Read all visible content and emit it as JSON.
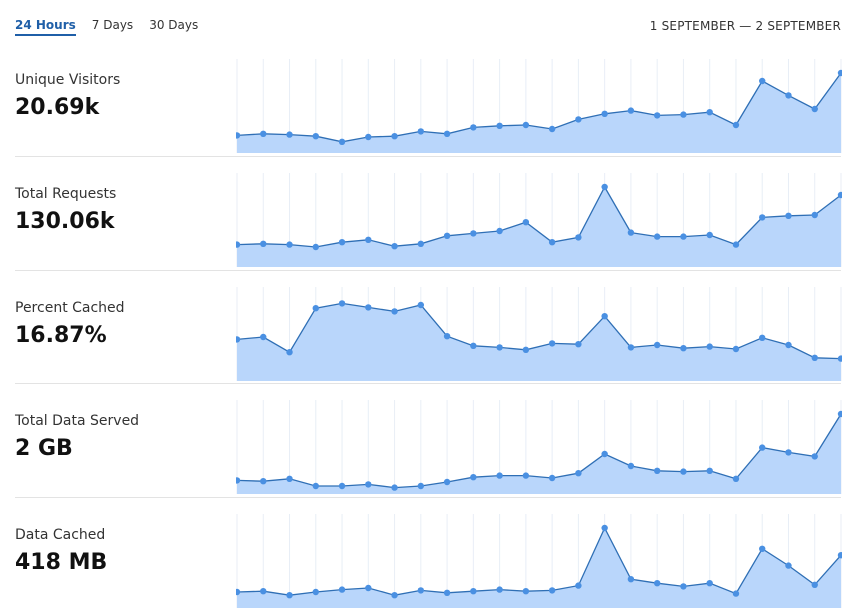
{
  "tabs": [
    {
      "label": "24 Hours",
      "active": true
    },
    {
      "label": "7 Days",
      "active": false
    },
    {
      "label": "30 Days",
      "active": false
    }
  ],
  "date_range": "1 SEPTEMBER — 2 SEPTEMBER",
  "colors": {
    "accent": "#1f5fa8",
    "line": "#2f6fb5",
    "fill": "#b9d6fb",
    "point": "#4a90e2"
  },
  "metrics": [
    {
      "label": "Unique Visitors",
      "value": "20.69k",
      "series": [
        0.22,
        0.24,
        0.23,
        0.21,
        0.14,
        0.2,
        0.21,
        0.27,
        0.24,
        0.32,
        0.34,
        0.35,
        0.3,
        0.42,
        0.49,
        0.53,
        0.47,
        0.48,
        0.51,
        0.35,
        0.9,
        0.72,
        0.55,
        1.0
      ]
    },
    {
      "label": "Total Requests",
      "value": "130.06k",
      "series": [
        0.28,
        0.29,
        0.28,
        0.25,
        0.31,
        0.34,
        0.26,
        0.29,
        0.39,
        0.42,
        0.45,
        0.56,
        0.31,
        0.37,
        1.0,
        0.43,
        0.38,
        0.38,
        0.4,
        0.28,
        0.62,
        0.64,
        0.65,
        0.9
      ]
    },
    {
      "label": "Percent Cached",
      "value": "16.87%",
      "series": [
        0.52,
        0.55,
        0.36,
        0.91,
        0.97,
        0.92,
        0.87,
        0.95,
        0.56,
        0.44,
        0.42,
        0.39,
        0.47,
        0.46,
        0.81,
        0.42,
        0.45,
        0.41,
        0.43,
        0.4,
        0.54,
        0.45,
        0.29,
        0.28
      ]
    },
    {
      "label": "Total Data Served",
      "value": "2 GB",
      "series": [
        0.17,
        0.16,
        0.19,
        0.1,
        0.1,
        0.12,
        0.08,
        0.1,
        0.15,
        0.21,
        0.23,
        0.23,
        0.2,
        0.26,
        0.5,
        0.35,
        0.29,
        0.28,
        0.29,
        0.19,
        0.58,
        0.52,
        0.47,
        1.0
      ]
    },
    {
      "label": "Data Cached",
      "value": "418 MB",
      "series": [
        0.2,
        0.21,
        0.16,
        0.2,
        0.23,
        0.25,
        0.16,
        0.22,
        0.19,
        0.21,
        0.23,
        0.21,
        0.22,
        0.28,
        1.0,
        0.36,
        0.31,
        0.27,
        0.31,
        0.18,
        0.74,
        0.53,
        0.29,
        0.66
      ]
    }
  ]
}
